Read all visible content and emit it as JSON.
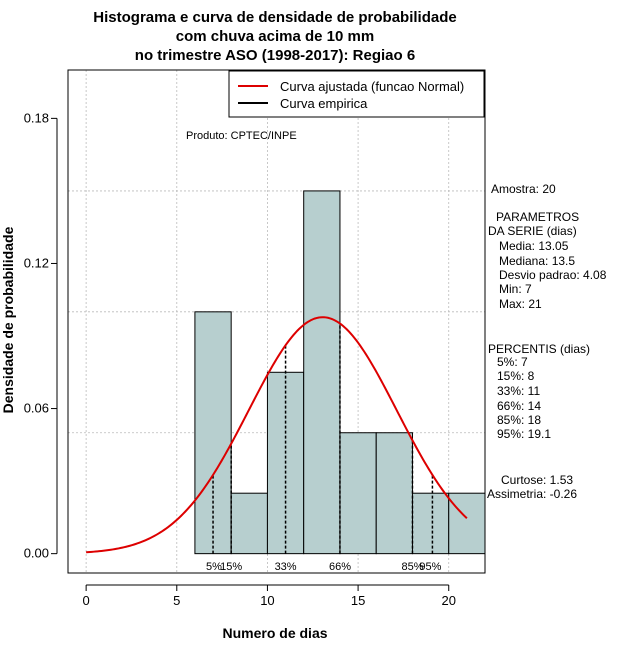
{
  "chart_data": {
    "type": "bar",
    "title_lines": [
      "Histograma e curva de densidade de probabilidade",
      "com chuva acima de 10 mm",
      "no trimestre ASO (1998-2017): Regiao 6"
    ],
    "xlabel": "Numero de dias",
    "ylabel": "Densidade de probabilidade",
    "xlim": [
      -1,
      22
    ],
    "ylim": [
      -0.008,
      0.2
    ],
    "x_ticks": [
      0,
      5,
      10,
      15,
      20
    ],
    "y_ticks": [
      0.0,
      0.06,
      0.12,
      0.18
    ],
    "x_tick_labels": [
      "0",
      "5",
      "10",
      "15",
      "20"
    ],
    "y_tick_labels": [
      "0.00",
      "0.06",
      "0.12",
      "0.18"
    ],
    "grid_x": [
      0,
      5,
      10,
      15,
      20
    ],
    "grid_y": [
      0.05,
      0.1,
      0.15
    ],
    "bins": [
      {
        "x0": 6,
        "x1": 8,
        "density": 0.1
      },
      {
        "x0": 8,
        "x1": 10,
        "density": 0.025
      },
      {
        "x0": 10,
        "x1": 12,
        "density": 0.075
      },
      {
        "x0": 12,
        "x1": 14,
        "density": 0.15
      },
      {
        "x0": 14,
        "x1": 16,
        "density": 0.05
      },
      {
        "x0": 16,
        "x1": 18,
        "density": 0.05
      },
      {
        "x0": 18,
        "x1": 20,
        "density": 0.025
      },
      {
        "x0": 20,
        "x1": 22,
        "density": 0.025
      }
    ],
    "normal_curve": {
      "mean": 13.05,
      "sd": 4.08,
      "x_from": 0,
      "x_to": 21
    },
    "percentile_lines": [
      {
        "x": 7,
        "label": "5%"
      },
      {
        "x": 8,
        "label": "15%"
      },
      {
        "x": 11,
        "label": "33%"
      },
      {
        "x": 14,
        "label": "66%"
      },
      {
        "x": 18,
        "label": "85%"
      },
      {
        "x": 19.1,
        "label": "95%"
      }
    ],
    "legend": {
      "position": "top-right",
      "entries": [
        {
          "label": "Curva ajustada (funcao Normal)",
          "color": "#dd0000"
        },
        {
          "label": "Curva empirica",
          "color": "#000000"
        }
      ]
    },
    "annotation": "Produto: CPTEC/INPE",
    "colors": {
      "bar_fill": "#b7cfcf",
      "curve": "#dd0000",
      "grid": "#bbbbbb"
    }
  },
  "stats": {
    "sample": "Amostra: 20",
    "params_title_1": "PARAMETROS",
    "params_title_2": "DA SERIE (dias)",
    "params": [
      "Media: 13.05",
      "Mediana: 13.5",
      "Desvio padrao: 4.08",
      "Min: 7",
      "Max: 21"
    ],
    "percentis_title": "PERCENTIS (dias)",
    "percentis": [
      "5%: 7",
      "15%: 8",
      "33%: 11",
      "66%: 14",
      "85%: 18",
      "95%: 19.1"
    ],
    "kurtosis": "Curtose: 1.53",
    "skewness": "Assimetria: -0.26"
  }
}
